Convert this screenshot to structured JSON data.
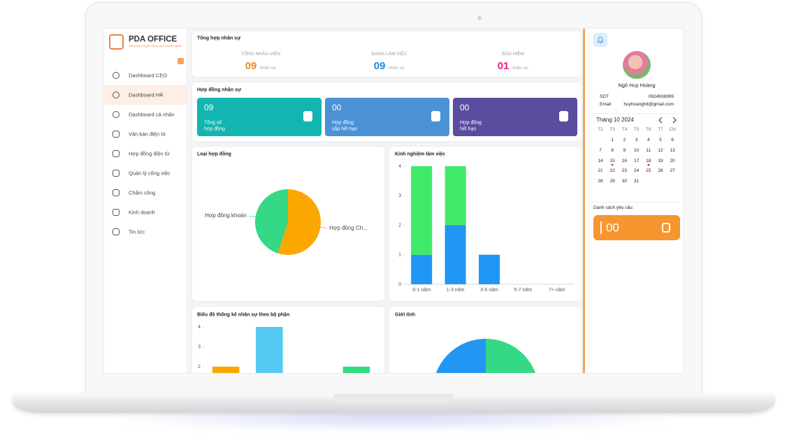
{
  "brand": {
    "name": "PDA OFFICE",
    "tagline": "Giải pháp chuyển đổi số cho Doanh nghiệp"
  },
  "nav": [
    "Dashboard CEO",
    "Dashboard HR",
    "Dashboard cá nhân",
    "Văn bản điện tử",
    "Hợp đồng điện tử",
    "Quản lý công việc",
    "Chấm công",
    "Kinh doanh",
    "Tin tức"
  ],
  "summary": {
    "title": "Tổng hợp nhân sự",
    "items": [
      {
        "label": "TỔNG NHÂN VIÊN",
        "value": "09",
        "unit": "nhân sự"
      },
      {
        "label": "ĐANG LÀM VIỆC",
        "value": "09",
        "unit": "nhân sự"
      },
      {
        "label": "BẢO HIỂM",
        "value": "01",
        "unit": "nhân sự"
      }
    ]
  },
  "contracts": {
    "title": "Hợp đồng nhân sự",
    "cards": [
      {
        "value": "09",
        "label": [
          "Tổng số",
          "hợp đồng"
        ]
      },
      {
        "value": "00",
        "label": [
          "Hợp đồng",
          "sắp hết hạn"
        ]
      },
      {
        "value": "00",
        "label": [
          "Hợp đồng",
          "hết hạn"
        ]
      }
    ]
  },
  "chart_data": [
    {
      "type": "pie",
      "title": "Loại hợp đồng",
      "categories": [
        "Hợp đồng Ch...",
        "Hợp đồng khoán"
      ],
      "values": [
        55,
        45
      ],
      "colors": [
        "#fba700",
        "#35d884"
      ]
    },
    {
      "type": "bar",
      "title": "Kinh nghiệm làm việc",
      "stacked": true,
      "categories": [
        "0-1 năm",
        "1-3 năm",
        "3-5 năm",
        "5-7 năm",
        "7+ năm"
      ],
      "series": [
        {
          "color": "#2196f3",
          "values": [
            1,
            2,
            1,
            0,
            0
          ]
        },
        {
          "color": "#41e96a",
          "values": [
            3,
            2,
            0,
            0,
            0
          ]
        }
      ],
      "ylim": [
        0,
        4
      ],
      "yticks": [
        0,
        1,
        2,
        3,
        4
      ]
    },
    {
      "type": "bar",
      "title": "Biểu đồ thống kê nhân sự theo bộ phận",
      "categories": [
        null,
        null,
        null,
        null
      ],
      "values": [
        2,
        4,
        0,
        2
      ],
      "colors": [
        "#fba700",
        "#55c9f3",
        "#7e57c2",
        "#2fdc7e"
      ],
      "ylim": [
        0,
        4
      ],
      "yticks": [
        0,
        1,
        2,
        3,
        4
      ]
    },
    {
      "type": "pie",
      "title": "Giới tính",
      "categories": [
        null,
        null
      ],
      "values": [
        50,
        50
      ],
      "colors": [
        "#35d884",
        "#2196f3"
      ]
    }
  ],
  "profile": {
    "name": "Ngô Huy Hoàng",
    "fields": [
      {
        "label": "SDT",
        "value": "0924936999"
      },
      {
        "label": "Email",
        "value": "huyhoanghit@gmail.com"
      }
    ]
  },
  "calendar": {
    "title": "Tháng 10 2024",
    "weekdays": [
      "T2",
      "T3",
      "T4",
      "T5",
      "T6",
      "T7",
      "CN"
    ],
    "weeks": [
      [
        null,
        1,
        2,
        3,
        4,
        5,
        6
      ],
      [
        7,
        8,
        9,
        10,
        11,
        12,
        13
      ],
      [
        14,
        15,
        16,
        17,
        18,
        19,
        20
      ],
      [
        21,
        22,
        23,
        24,
        25,
        26,
        27
      ],
      [
        28,
        29,
        30,
        31,
        null,
        null,
        null
      ]
    ],
    "events": [
      15,
      18
    ]
  },
  "requests": {
    "title": "Danh sách yêu cầu:",
    "count": "00"
  }
}
